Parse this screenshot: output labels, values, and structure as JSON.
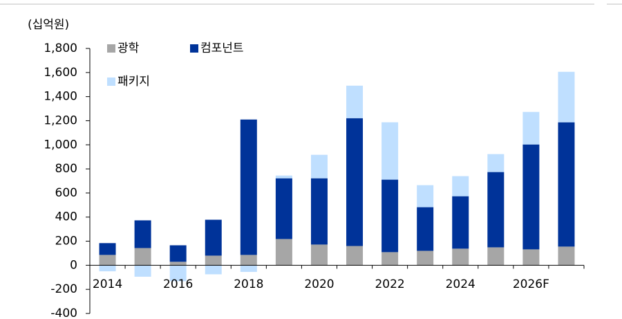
{
  "chart_data": {
    "type": "stacked_bar",
    "unit_label": "(십억원)",
    "categories": [
      "2014",
      null,
      "2016",
      null,
      "2018",
      null,
      "2020",
      null,
      "2022",
      null,
      "2024",
      null,
      "2026F",
      null
    ],
    "series": [
      {
        "name": "광학",
        "color": "#a6a6a6",
        "values": [
          86,
          143,
          29,
          80,
          86,
          218,
          172,
          160,
          109,
          120,
          138,
          149,
          132,
          155
        ]
      },
      {
        "name": "컴포넌트",
        "color": "#003399",
        "values": [
          98,
          230,
          137,
          298,
          1124,
          504,
          550,
          1061,
          602,
          362,
          435,
          625,
          871,
          1032
        ]
      },
      {
        "name": "패키지",
        "color": "#bfdfff",
        "values": [
          -50,
          -95,
          -132,
          -75,
          -55,
          23,
          195,
          270,
          476,
          183,
          167,
          149,
          270,
          419
        ]
      }
    ],
    "ylim": [
      -400,
      1800
    ],
    "yticks": [
      -400,
      -200,
      0,
      200,
      400,
      600,
      800,
      {
        "value": 1000,
        "label": "1,000"
      },
      {
        "value": 1200,
        "label": "1,200"
      },
      {
        "value": 1400,
        "label": "1,400"
      },
      {
        "value": 1600,
        "label": "1,600"
      },
      {
        "value": 1800,
        "label": "1,800"
      }
    ]
  }
}
